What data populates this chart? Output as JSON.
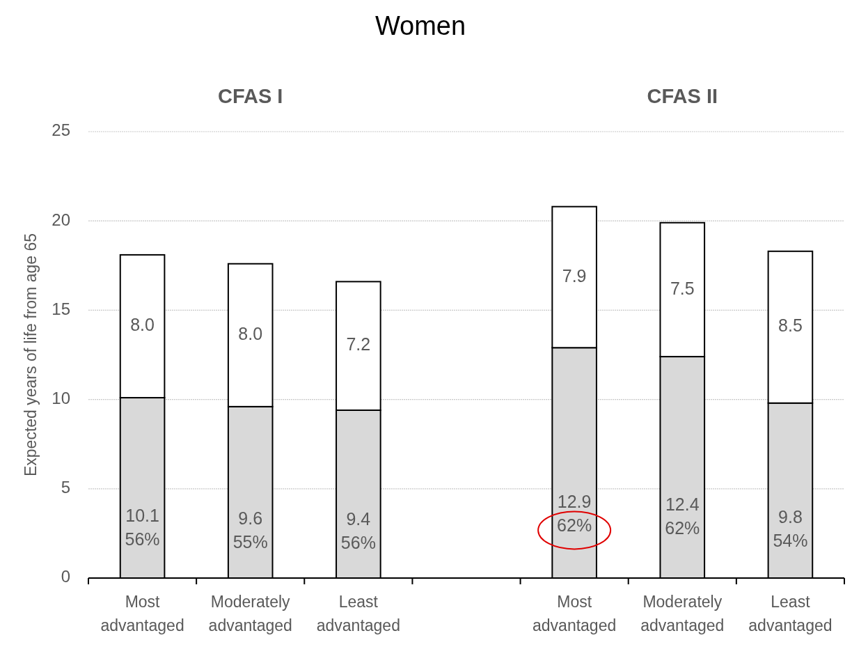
{
  "chart_data": {
    "type": "bar",
    "title": "Women",
    "ylabel": "Expected years of life from age 65",
    "categories": [
      "Most advantaged",
      "Moderately advantaged",
      "Least advantaged",
      null,
      "Most advantaged",
      "Moderately advantaged",
      "Least advantaged"
    ],
    "stacked": true,
    "series": [
      {
        "color": "#d9d9d9",
        "values": [
          10.1,
          9.6,
          9.4,
          null,
          12.9,
          12.4,
          9.8
        ],
        "value_labels": [
          "10.1\n56%",
          "9.6\n55%",
          "9.4\n56%",
          null,
          "12.9\n62%",
          "12.4\n62%",
          "9.8\n54%"
        ]
      },
      {
        "color": "#ffffff",
        "values": [
          8.0,
          8.0,
          7.2,
          null,
          7.9,
          7.5,
          8.5
        ],
        "value_labels": [
          "8.0",
          "8.0",
          "7.2",
          null,
          "7.9",
          "7.5",
          "8.5"
        ]
      }
    ],
    "annotations": [
      "CFAS I",
      "CFAS II"
    ],
    "ylim": [
      0,
      25
    ],
    "yticks": [
      0,
      5,
      10,
      15,
      20,
      25
    ],
    "grid": "y"
  }
}
